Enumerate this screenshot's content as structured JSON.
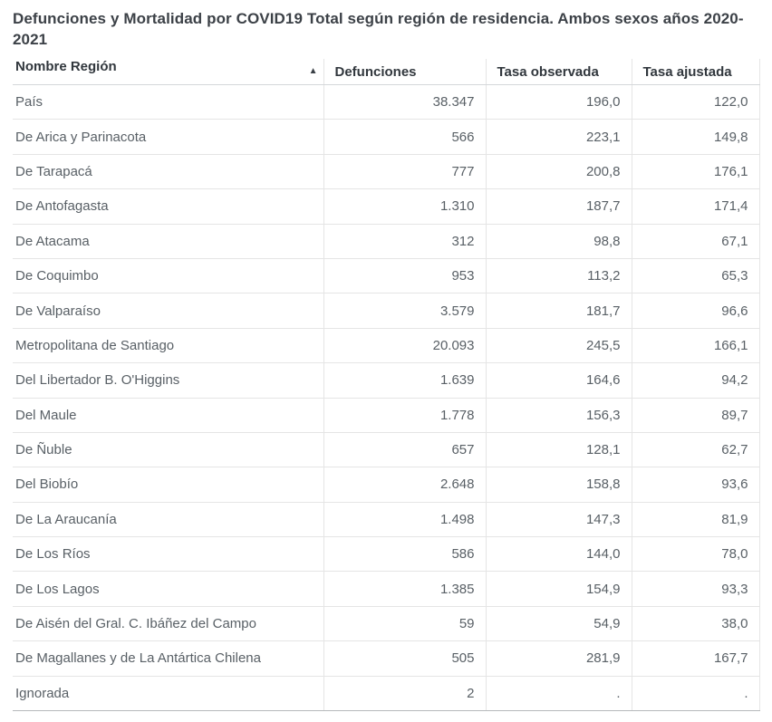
{
  "title": "Defunciones y Mortalidad por COVID19 Total según región de residencia. Ambos sexos años 2020-2021",
  "table": {
    "sort_icon": "▲",
    "sorted_column": "Nombre Región",
    "sort_direction": "ascending",
    "columns": [
      {
        "label": "Nombre Región"
      },
      {
        "label": "Defunciones"
      },
      {
        "label": "Tasa observada"
      },
      {
        "label": "Tasa ajustada"
      }
    ],
    "rows": [
      {
        "region": "País",
        "defunciones": "38.347",
        "tasa_observada": "196,0",
        "tasa_ajustada": "122,0"
      },
      {
        "region": "De Arica y Parinacota",
        "defunciones": "566",
        "tasa_observada": "223,1",
        "tasa_ajustada": "149,8"
      },
      {
        "region": "De Tarapacá",
        "defunciones": "777",
        "tasa_observada": "200,8",
        "tasa_ajustada": "176,1"
      },
      {
        "region": "De Antofagasta",
        "defunciones": "1.310",
        "tasa_observada": "187,7",
        "tasa_ajustada": "171,4"
      },
      {
        "region": "De Atacama",
        "defunciones": "312",
        "tasa_observada": "98,8",
        "tasa_ajustada": "67,1"
      },
      {
        "region": "De Coquimbo",
        "defunciones": "953",
        "tasa_observada": "113,2",
        "tasa_ajustada": "65,3"
      },
      {
        "region": "De Valparaíso",
        "defunciones": "3.579",
        "tasa_observada": "181,7",
        "tasa_ajustada": "96,6"
      },
      {
        "region": "Metropolitana de Santiago",
        "defunciones": "20.093",
        "tasa_observada": "245,5",
        "tasa_ajustada": "166,1"
      },
      {
        "region": "Del Libertador B. O'Higgins",
        "defunciones": "1.639",
        "tasa_observada": "164,6",
        "tasa_ajustada": "94,2"
      },
      {
        "region": "Del Maule",
        "defunciones": "1.778",
        "tasa_observada": "156,3",
        "tasa_ajustada": "89,7"
      },
      {
        "region": "De Ñuble",
        "defunciones": "657",
        "tasa_observada": "128,1",
        "tasa_ajustada": "62,7"
      },
      {
        "region": "Del Biobío",
        "defunciones": "2.648",
        "tasa_observada": "158,8",
        "tasa_ajustada": "93,6"
      },
      {
        "region": "De La Araucanía",
        "defunciones": "1.498",
        "tasa_observada": "147,3",
        "tasa_ajustada": "81,9"
      },
      {
        "region": "De Los Ríos",
        "defunciones": "586",
        "tasa_observada": "144,0",
        "tasa_ajustada": "78,0"
      },
      {
        "region": "De Los Lagos",
        "defunciones": "1.385",
        "tasa_observada": "154,9",
        "tasa_ajustada": "93,3"
      },
      {
        "region": "De Aisén del Gral. C. Ibáñez del Campo",
        "defunciones": "59",
        "tasa_observada": "54,9",
        "tasa_ajustada": "38,0"
      },
      {
        "region": "De Magallanes y de La Antártica Chilena",
        "defunciones": "505",
        "tasa_observada": "281,9",
        "tasa_ajustada": "167,7"
      },
      {
        "region": "Ignorada",
        "defunciones": "2",
        "tasa_observada": ".",
        "tasa_ajustada": "."
      }
    ]
  },
  "colors": {
    "title_text": "#3c4147",
    "header_text": "#31373d",
    "body_text": "#596066",
    "row_border": "#e5e5e5",
    "header_border": "#d4d7da",
    "table_bottom_border": "#b6b9bb",
    "background": "#ffffff"
  }
}
